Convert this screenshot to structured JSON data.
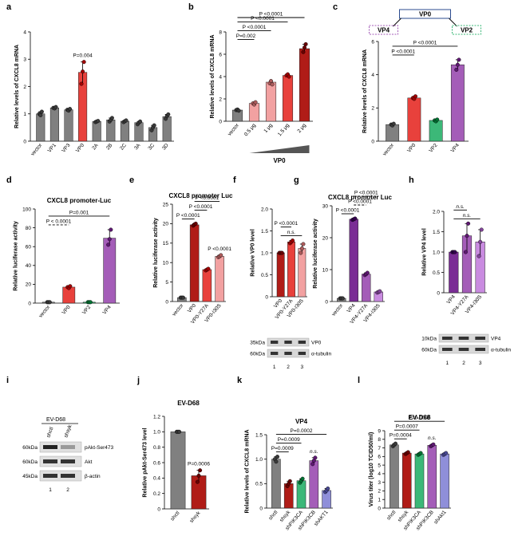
{
  "colors": {
    "gray": "#808080",
    "red": "#e8413c",
    "green": "#3cb878",
    "purple": "#a45db8",
    "darkred": "#b01c17",
    "violet": "#7a2d95",
    "pink": "#f2a1a1",
    "lightpurple": "#c98be0",
    "lavender": "#a7a2e0",
    "blue": "#8f8fd9"
  },
  "chart_data": [
    {
      "panel": "a",
      "type": "bar",
      "title": "",
      "ylabel": "Relative levels of CXCL8 mRNA",
      "ylim": [
        0,
        4
      ],
      "yticks": [
        "0",
        "1",
        "2",
        "3",
        "4"
      ],
      "categories": [
        "vector",
        "VP1",
        "VP3",
        "VP0",
        "2A",
        "2B",
        "2C",
        "3A",
        "3C",
        "3D"
      ],
      "values": [
        1.0,
        1.22,
        1.15,
        2.52,
        0.72,
        0.78,
        0.73,
        0.68,
        0.5,
        0.9
      ],
      "colors": [
        "gray",
        "gray",
        "gray",
        "red",
        "gray",
        "gray",
        "gray",
        "gray",
        "gray",
        "gray"
      ],
      "points": [
        [
          1.0,
          0.95,
          1.08
        ],
        [
          1.22,
          1.2,
          1.25
        ],
        [
          1.15,
          1.12,
          1.18
        ],
        [
          2.1,
          2.55,
          2.9
        ],
        [
          0.7,
          0.72,
          0.74
        ],
        [
          0.72,
          0.78,
          0.85
        ],
        [
          0.7,
          0.73,
          0.76
        ],
        [
          0.62,
          0.68,
          0.72
        ],
        [
          0.4,
          0.5,
          0.58
        ],
        [
          0.82,
          0.92,
          0.98
        ]
      ],
      "annotations": [
        {
          "text": "P=0.004",
          "bar": 3
        }
      ]
    },
    {
      "panel": "b",
      "type": "bar",
      "title": "",
      "ylabel": "Relative levels of CXCL8 mRNA",
      "ylim": [
        0,
        8
      ],
      "yticks": [
        "0",
        "2",
        "4",
        "6",
        "8"
      ],
      "categories": [
        "vector",
        "0.5 μg",
        "1 μg",
        "1.5 μg",
        "2 μg"
      ],
      "values": [
        1.0,
        1.6,
        3.5,
        4.1,
        6.5
      ],
      "colors": [
        "gray",
        "pink",
        "pink",
        "red",
        "darkred"
      ],
      "points": [
        [
          1.0,
          1.05,
          0.95
        ],
        [
          1.6,
          1.5,
          1.7
        ],
        [
          3.4,
          3.6,
          3.3
        ],
        [
          4.1,
          4.2,
          4.0
        ],
        [
          6.2,
          6.6,
          6.9
        ]
      ],
      "xlabel": "VP0",
      "brackets": [
        {
          "text": "P=0.002",
          "from": 0,
          "to": 1
        },
        {
          "text": "P <0.0001",
          "from": 0,
          "to": 2
        },
        {
          "text": "P <0.0001",
          "from": 0,
          "to": 3
        },
        {
          "text": "P <0.0001",
          "from": 0,
          "to": 4
        }
      ]
    },
    {
      "panel": "c",
      "type": "bar",
      "title": "",
      "ylabel": "Relative levels of CXCL8 mRNA",
      "ylim": [
        0,
        6
      ],
      "yticks": [
        "0",
        "2",
        "4",
        "6"
      ],
      "categories": [
        "vector",
        "VP0",
        "VP2",
        "VP4"
      ],
      "values": [
        1.0,
        2.6,
        1.25,
        4.6
      ],
      "colors": [
        "gray",
        "red",
        "green",
        "purple"
      ],
      "points": [
        [
          1.0,
          0.95,
          1.05
        ],
        [
          2.6,
          2.55,
          2.7
        ],
        [
          1.25,
          1.2,
          1.3
        ],
        [
          4.3,
          4.6,
          4.9
        ]
      ],
      "diagram": {
        "parent": "VP0",
        "left": "VP4",
        "right": "VP2"
      },
      "brackets": [
        {
          "text": "P <0.0001",
          "from": 0,
          "to": 1
        },
        {
          "text": "P <0.0001",
          "from": 0,
          "to": 3
        }
      ]
    },
    {
      "panel": "d",
      "type": "bar",
      "title": "CXCL8 promoter-Luc",
      "ylabel": "Relative luciferase activity",
      "ylim": [
        0,
        100
      ],
      "yticks": [
        "0",
        "20",
        "40",
        "60",
        "80",
        "100"
      ],
      "categories": [
        "vector",
        "VP0",
        "VP2",
        "VP4"
      ],
      "values": [
        1,
        17,
        1,
        69
      ],
      "colors": [
        "gray",
        "red",
        "green",
        "purple"
      ],
      "points": [
        [
          1,
          1,
          1
        ],
        [
          17,
          16,
          18
        ],
        [
          1,
          1,
          1
        ],
        [
          62,
          68,
          78
        ]
      ],
      "brackets": [
        {
          "text": "P < 0.0001",
          "from": 0,
          "to": 1,
          "dashed": true
        },
        {
          "text": "P=0.001",
          "from": 0,
          "to": 3
        }
      ]
    },
    {
      "panel": "e",
      "type": "bar",
      "title": "CXCL8 promoter Luc",
      "ylabel": "Relative luciferase activity",
      "ylim": [
        0,
        25
      ],
      "yticks": [
        "0",
        "5",
        "10",
        "15",
        "20",
        "25"
      ],
      "categories": [
        "vector",
        "VP0",
        "VP0-Y27A",
        "VP0-I30S"
      ],
      "values": [
        1,
        19.7,
        8.2,
        11.6
      ],
      "colors": [
        "gray",
        "darkred",
        "red",
        "pink"
      ],
      "points": [
        [
          1,
          1,
          1
        ],
        [
          19.5,
          19.8,
          20
        ],
        [
          8,
          8.2,
          8.4
        ],
        [
          11.4,
          11.6,
          11.9
        ]
      ],
      "brackets": [
        {
          "text": "P <0.0001",
          "from": 0,
          "to": 1
        },
        {
          "text": "P <0.0001",
          "from": 1,
          "to": 2
        },
        {
          "text": "P <0.0001",
          "from": 1,
          "to": 3
        },
        {
          "text": "P <0.0001",
          "from": 3,
          "to": 3,
          "dashed": true
        }
      ]
    },
    {
      "panel": "f",
      "type": "bar",
      "title": "",
      "ylabel": "Relative VP0 level",
      "ylim": [
        0,
        2.0
      ],
      "yticks": [
        "0",
        "0.5",
        "1.0",
        "1.5",
        "2.0"
      ],
      "categories": [
        "VP0",
        "VP0-Y27A",
        "VP0-I30S"
      ],
      "values": [
        1.0,
        1.25,
        1.1
      ],
      "colors": [
        "darkred",
        "red",
        "pink"
      ],
      "points": [
        [
          1.0,
          1.0,
          1.0
        ],
        [
          1.22,
          1.25,
          1.28
        ],
        [
          1.0,
          1.1,
          1.2
        ]
      ],
      "brackets": [
        {
          "text": "n.s.",
          "from": 0,
          "to": 2,
          "italic": true
        },
        {
          "text": "P <0.0001",
          "from": 0,
          "to": 1
        }
      ],
      "blot": {
        "rows": [
          "VP0",
          "α-tubulin"
        ],
        "markers": [
          "35kDa",
          "60kDa"
        ],
        "lanes": [
          "1",
          "2",
          "3"
        ]
      }
    },
    {
      "panel": "g",
      "type": "bar",
      "title": "CXCL8 promoter Luc",
      "ylabel": "Relative luciferase activity",
      "ylim": [
        0,
        30
      ],
      "yticks": [
        "0",
        "10",
        "20",
        "30"
      ],
      "categories": [
        "vector",
        "VP4",
        "VP4-Y27A",
        "VP4-I30S"
      ],
      "values": [
        1,
        25.8,
        8.6,
        3.0
      ],
      "colors": [
        "gray",
        "violet",
        "purple",
        "lightpurple"
      ],
      "points": [
        [
          1,
          1,
          1
        ],
        [
          25.6,
          25.8,
          26
        ],
        [
          8.3,
          8.6,
          9
        ],
        [
          2.8,
          3.0,
          3.2
        ]
      ],
      "brackets": [
        {
          "text": "P <0.0001",
          "from": 0,
          "to": 1
        },
        {
          "text": "P <0.0001",
          "from": 1,
          "to": 2,
          "dashed": true
        },
        {
          "text": "P <0.0001",
          "from": 1,
          "to": 3,
          "dashed": true
        }
      ]
    },
    {
      "panel": "h",
      "type": "bar",
      "title": "",
      "ylabel": "Relative VP4 level",
      "ylim": [
        0,
        2.0
      ],
      "yticks": [
        "0",
        "0.5",
        "1.0",
        "1.5",
        "2.0"
      ],
      "categories": [
        "VP4",
        "VP4-Y27A",
        "VP4-I30S"
      ],
      "values": [
        1.0,
        1.4,
        1.25
      ],
      "colors": [
        "violet",
        "purple",
        "lightpurple"
      ],
      "points": [
        [
          1.0,
          1.0,
          1.0
        ],
        [
          1.0,
          1.4,
          1.7
        ],
        [
          0.9,
          1.25,
          1.55
        ]
      ],
      "brackets": [
        {
          "text": "n.s.",
          "from": 0,
          "to": 2,
          "italic": true
        },
        {
          "text": "n.s.",
          "from": 0,
          "to": 1,
          "italic": true
        }
      ],
      "blot": {
        "rows": [
          "VP4",
          "α-tubulin"
        ],
        "markers": [
          "10kDa",
          "60kDa"
        ],
        "lanes": [
          "1",
          "2",
          "3"
        ]
      }
    },
    {
      "panel": "j",
      "type": "bar",
      "title": "EV-D68",
      "ylabel": "Relative pAkt-Ser473 level",
      "ylim": [
        0,
        1.2
      ],
      "yticks": [
        "0",
        "0.2",
        "0.4",
        "0.6",
        "0.8",
        "1.0",
        "1.2"
      ],
      "categories": [
        "shctl",
        "shsyk"
      ],
      "values": [
        1.0,
        0.43
      ],
      "colors": [
        "gray",
        "darkred"
      ],
      "points": [
        [
          1.0,
          1.0,
          1.0
        ],
        [
          0.35,
          0.43,
          0.5
        ]
      ],
      "annotations": [
        {
          "text": "P=0.0006",
          "bar": 1
        }
      ]
    },
    {
      "panel": "k",
      "type": "bar",
      "title": "VP4",
      "ylabel": "Relative levels of CXCL8 mRNA",
      "ylim": [
        0,
        1.5
      ],
      "yticks": [
        "0",
        "0.5",
        "1.0",
        "1.5"
      ],
      "categories": [
        "shctl",
        "shsyk",
        "shPIK3CA",
        "shPIK3CB",
        "shAKT1"
      ],
      "values": [
        1.0,
        0.5,
        0.56,
        0.97,
        0.36
      ],
      "colors": [
        "gray",
        "darkred",
        "green",
        "purple",
        "blue"
      ],
      "points": [
        [
          1.0,
          0.95,
          1.05
        ],
        [
          0.45,
          0.5,
          0.55
        ],
        [
          0.52,
          0.56,
          0.6
        ],
        [
          0.9,
          0.97,
          1.03
        ],
        [
          0.33,
          0.36,
          0.4
        ]
      ],
      "brackets": [
        {
          "text": "P=0.0009",
          "from": 0,
          "to": 1
        },
        {
          "text": "P=0.0009",
          "from": 0,
          "to": 2
        },
        {
          "text": "P=0.0002",
          "from": 0,
          "to": 4
        },
        {
          "text": "n.s.",
          "from": 3,
          "to": 3,
          "italic": true
        }
      ]
    },
    {
      "panel": "l",
      "type": "bar",
      "title": "EV-D68",
      "ylabel": "Virus titer (log10 TCID50/ml)",
      "ylim": [
        0,
        9
      ],
      "yticks": [
        "0",
        "1",
        "2",
        "3",
        "4",
        "5",
        "6",
        "7",
        "8",
        "9"
      ],
      "categories": [
        "shctl",
        "shsyk",
        "shPIK3CA",
        "shPIK3CB",
        "shAkt1"
      ],
      "values": [
        7.35,
        6.4,
        6.3,
        7.3,
        6.3
      ],
      "colors": [
        "gray",
        "darkred",
        "green",
        "purple",
        "blue"
      ],
      "points": [
        [
          7.2,
          7.35,
          7.5
        ],
        [
          6.3,
          6.4,
          6.5
        ],
        [
          6.2,
          6.3,
          6.4
        ],
        [
          7.2,
          7.3,
          7.4
        ],
        [
          6.2,
          6.3,
          6.4
        ]
      ],
      "brackets": [
        {
          "text": "P=0.0004",
          "from": 0,
          "to": 1
        },
        {
          "text": "P=0.0007",
          "from": 0,
          "to": 2
        },
        {
          "text": "P=0.0006",
          "from": 0,
          "to": 4
        },
        {
          "text": "n.s.",
          "from": 3,
          "to": 3,
          "italic": true
        }
      ]
    }
  ],
  "panel_i": {
    "label": "i",
    "header": "EV-D68",
    "lanes": [
      "shctl",
      "shsyk"
    ],
    "rows": [
      "pAkt-Ser473",
      "Akt",
      "β-actin"
    ],
    "markers": [
      "60kDa",
      "60kDa",
      "45kDa"
    ],
    "lane_numbers": [
      "1",
      "2"
    ]
  }
}
